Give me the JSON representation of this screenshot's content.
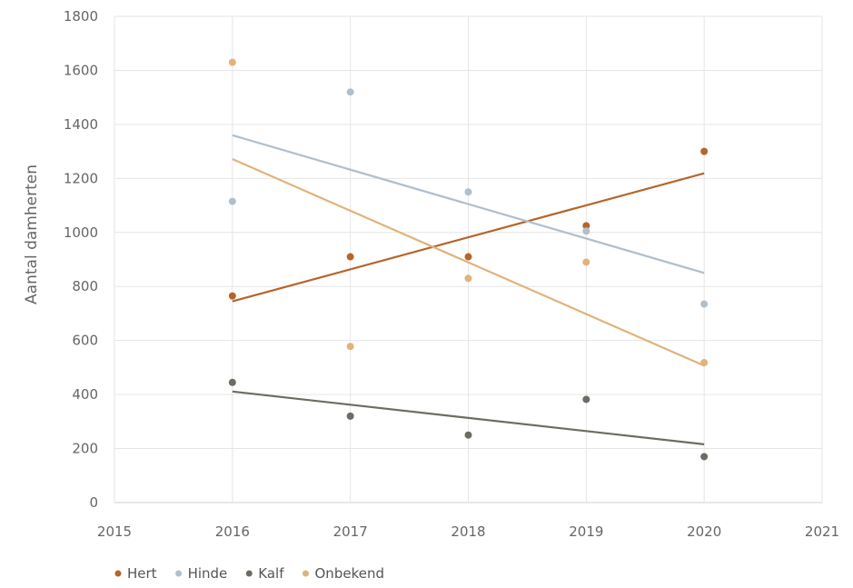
{
  "chart_data": {
    "type": "scatter",
    "ylabel": "Aantal damherten",
    "xlabel": "",
    "xlim": [
      2015,
      2021
    ],
    "ylim": [
      0,
      1800
    ],
    "x_ticks": [
      2015,
      2016,
      2017,
      2018,
      2019,
      2020,
      2021
    ],
    "y_ticks": [
      0,
      200,
      400,
      600,
      800,
      1000,
      1200,
      1400,
      1600,
      1800
    ],
    "grid": true,
    "legend_position": "bottom-left",
    "trendlines": "linear",
    "series": [
      {
        "name": "Hert",
        "color": "#b5652a",
        "x": [
          2016,
          2017,
          2018,
          2019,
          2020
        ],
        "y": [
          765,
          910,
          910,
          1025,
          1300
        ]
      },
      {
        "name": "Hinde",
        "color": "#b0bfcc",
        "x": [
          2016,
          2017,
          2018,
          2019,
          2020
        ],
        "y": [
          1115,
          1520,
          1150,
          1005,
          735
        ]
      },
      {
        "name": "Kalf",
        "color": "#6e6b62",
        "x": [
          2016,
          2017,
          2018,
          2019,
          2020
        ],
        "y": [
          445,
          320,
          250,
          382,
          170
        ]
      },
      {
        "name": "Onbekend",
        "color": "#e1b27c",
        "x": [
          2016,
          2017,
          2018,
          2019,
          2020
        ],
        "y": [
          1630,
          578,
          830,
          890,
          518
        ]
      }
    ]
  }
}
